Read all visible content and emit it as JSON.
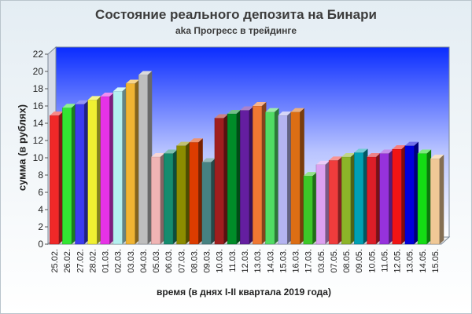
{
  "chart_data": {
    "type": "bar",
    "title": "Состояние реального депозита на Бинари",
    "subtitle": "aka Прогресс в трейдинге",
    "xlabel": "время (в днях I-II квартала 2019 года)",
    "ylabel": "сумма (в рублях)",
    "ylim": [
      0,
      22
    ],
    "yticks": [
      0,
      2,
      4,
      6,
      8,
      10,
      12,
      14,
      16,
      18,
      20,
      22
    ],
    "grid": false,
    "legend": "none",
    "categories": [
      "25.02.",
      "26.02.",
      "27.02.",
      "28.02.",
      "01.03.",
      "02.03.",
      "03.03.",
      "04.03.",
      "05.03.",
      "06.03.",
      "07.03.",
      "08.03.",
      "09.03.",
      "10.03.",
      "11.03.",
      "12.03.",
      "13.03.",
      "14.03.",
      "15.03.",
      "16.03.",
      "17.03.",
      "03.05.",
      "07.05.",
      "08.05.",
      "09.05.",
      "10.05.",
      "11.05.",
      "12.05.",
      "13.05.",
      "14.05.",
      "15.05."
    ],
    "values": [
      14.9,
      15.8,
      16.2,
      16.7,
      17.1,
      17.7,
      18.6,
      19.6,
      10.1,
      10.5,
      11.4,
      11.8,
      9.5,
      14.6,
      15.1,
      15.5,
      16.0,
      15.3,
      14.9,
      15.3,
      7.9,
      9.2,
      9.7,
      10.1,
      10.6,
      10.1,
      10.5,
      11.0,
      11.4,
      10.5,
      9.9
    ],
    "colors": [
      "#f02828",
      "#32e632",
      "#3c3cf0",
      "#f0f032",
      "#e632e6",
      "#b4f0f0",
      "#f0b432",
      "#bebebe",
      "#f0b4b4",
      "#148c6e",
      "#8c8c00",
      "#dc3c00",
      "#468282",
      "#a01e1e",
      "#008c28",
      "#641ea0",
      "#f07832",
      "#50dc64",
      "#b4b4f0",
      "#dc6e14",
      "#3cc828",
      "#dca0f0",
      "#f03c3c",
      "#8cb428",
      "#00a0b4",
      "#dc1e28",
      "#9632dc",
      "#f01414",
      "#0000dc",
      "#14dc14",
      "#f0c896"
    ]
  }
}
